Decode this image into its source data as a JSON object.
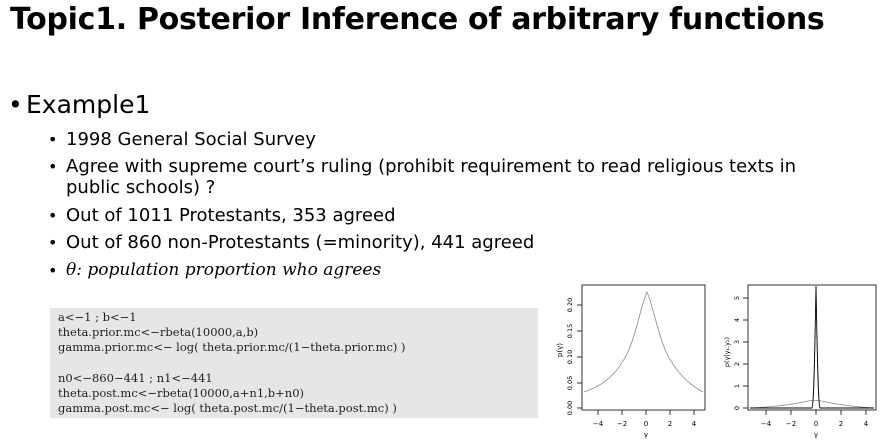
{
  "slide": {
    "title": "Topic1. Posterior Inference of arbitrary functions",
    "bullet1": "Example1",
    "items": [
      "1998 General Social Survey",
      "Agree with supreme court’s ruling (prohibit requirement to read religious texts in",
      "public schools) ?",
      "Out of 1011 Protestants, 353 agreed",
      "Out of 860 non-Protestants (=minority), 441 agreed",
      "θ: population proportion who agrees"
    ]
  },
  "code": {
    "lines": [
      "a<−1 ; b<−1",
      "theta.prior.mc<−rbeta(10000,a,b)",
      "gamma.prior.mc<− log( theta.prior.mc/(1−theta.prior.mc) )",
      "n0<−860−441 ; n1<−441",
      "theta.post.mc<−rbeta(10000,a+n1,b+n0)",
      "gamma.post.mc<− log( theta.post.mc/(1−theta.post.mc) )"
    ]
  },
  "plots": {
    "left": {
      "ylabel": "p(γ)",
      "xlabel": "γ",
      "xticks": [
        "−4",
        "−2",
        "0",
        "2",
        "4"
      ],
      "yticks": [
        "0.00",
        "0.05",
        "0.10",
        "0.15",
        "0.20"
      ]
    },
    "right": {
      "ylabel": "p(γ|y₁,y₂)",
      "xlabel": "γ",
      "xticks": [
        "−4",
        "−2",
        "0",
        "2",
        "4"
      ],
      "yticks": [
        "0",
        "1",
        "2",
        "3",
        "4",
        "5"
      ]
    }
  }
}
